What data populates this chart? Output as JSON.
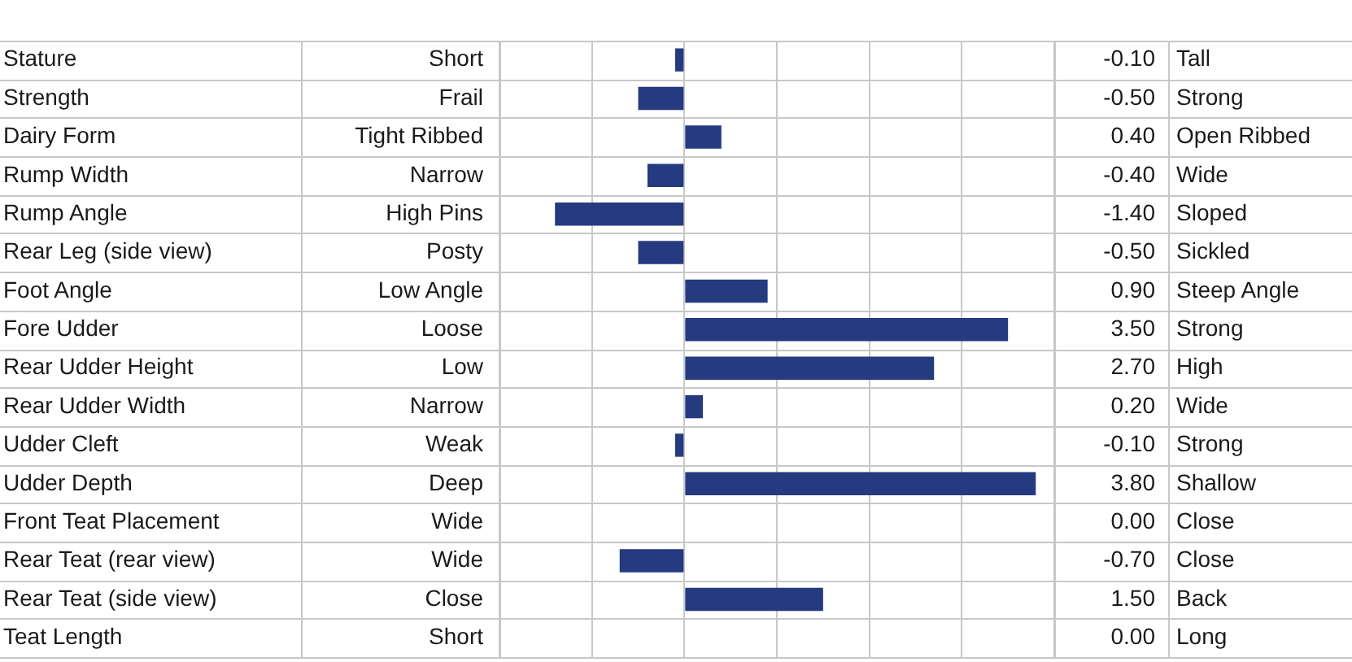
{
  "chart_data": {
    "type": "bar",
    "orientation": "horizontal",
    "tick_labels": false,
    "grid": "x",
    "color": "#263a80",
    "categories": [
      "Stature",
      "Strength",
      "Dairy Form",
      "Rump Width",
      "Rump Angle",
      "Rear Leg (side view)",
      "Foot Angle",
      "Fore Udder",
      "Rear Udder Height",
      "Rear Udder Width",
      "Udder Cleft",
      "Udder Depth",
      "Front Teat Placement",
      "Rear Teat (rear view)",
      "Rear Teat (side view)",
      "Teat Length"
    ],
    "values": [
      -0.1,
      -0.5,
      0.4,
      -0.4,
      -1.4,
      -0.5,
      0.9,
      3.5,
      2.7,
      0.2,
      -0.1,
      3.8,
      0,
      -0.7,
      1.5,
      0
    ],
    "value_labels": [
      "-0.10",
      "-0.50",
      "0.40",
      "-0.40",
      "-1.40",
      "-0.50",
      "0.90",
      "3.50",
      "2.70",
      "0.20",
      "-0.10",
      "3.80",
      "0.00",
      "-0.70",
      "1.50",
      "0.00"
    ],
    "annotations": [
      "Short",
      "Frail",
      "Tight Ribbed",
      "Narrow",
      "High Pins",
      "Posty",
      "Low Angle",
      "Loose",
      "Low",
      "Narrow",
      "Weak",
      "Deep",
      "Wide",
      "Wide",
      "Close",
      "Short",
      "Tall",
      "Strong",
      "Open Ribbed",
      "Wide",
      "Sloped",
      "Sickled",
      "Steep Angle",
      "Strong",
      "High",
      "Wide",
      "Strong",
      "Shallow",
      "Close",
      "Close",
      "Back",
      "Long"
    ]
  }
}
